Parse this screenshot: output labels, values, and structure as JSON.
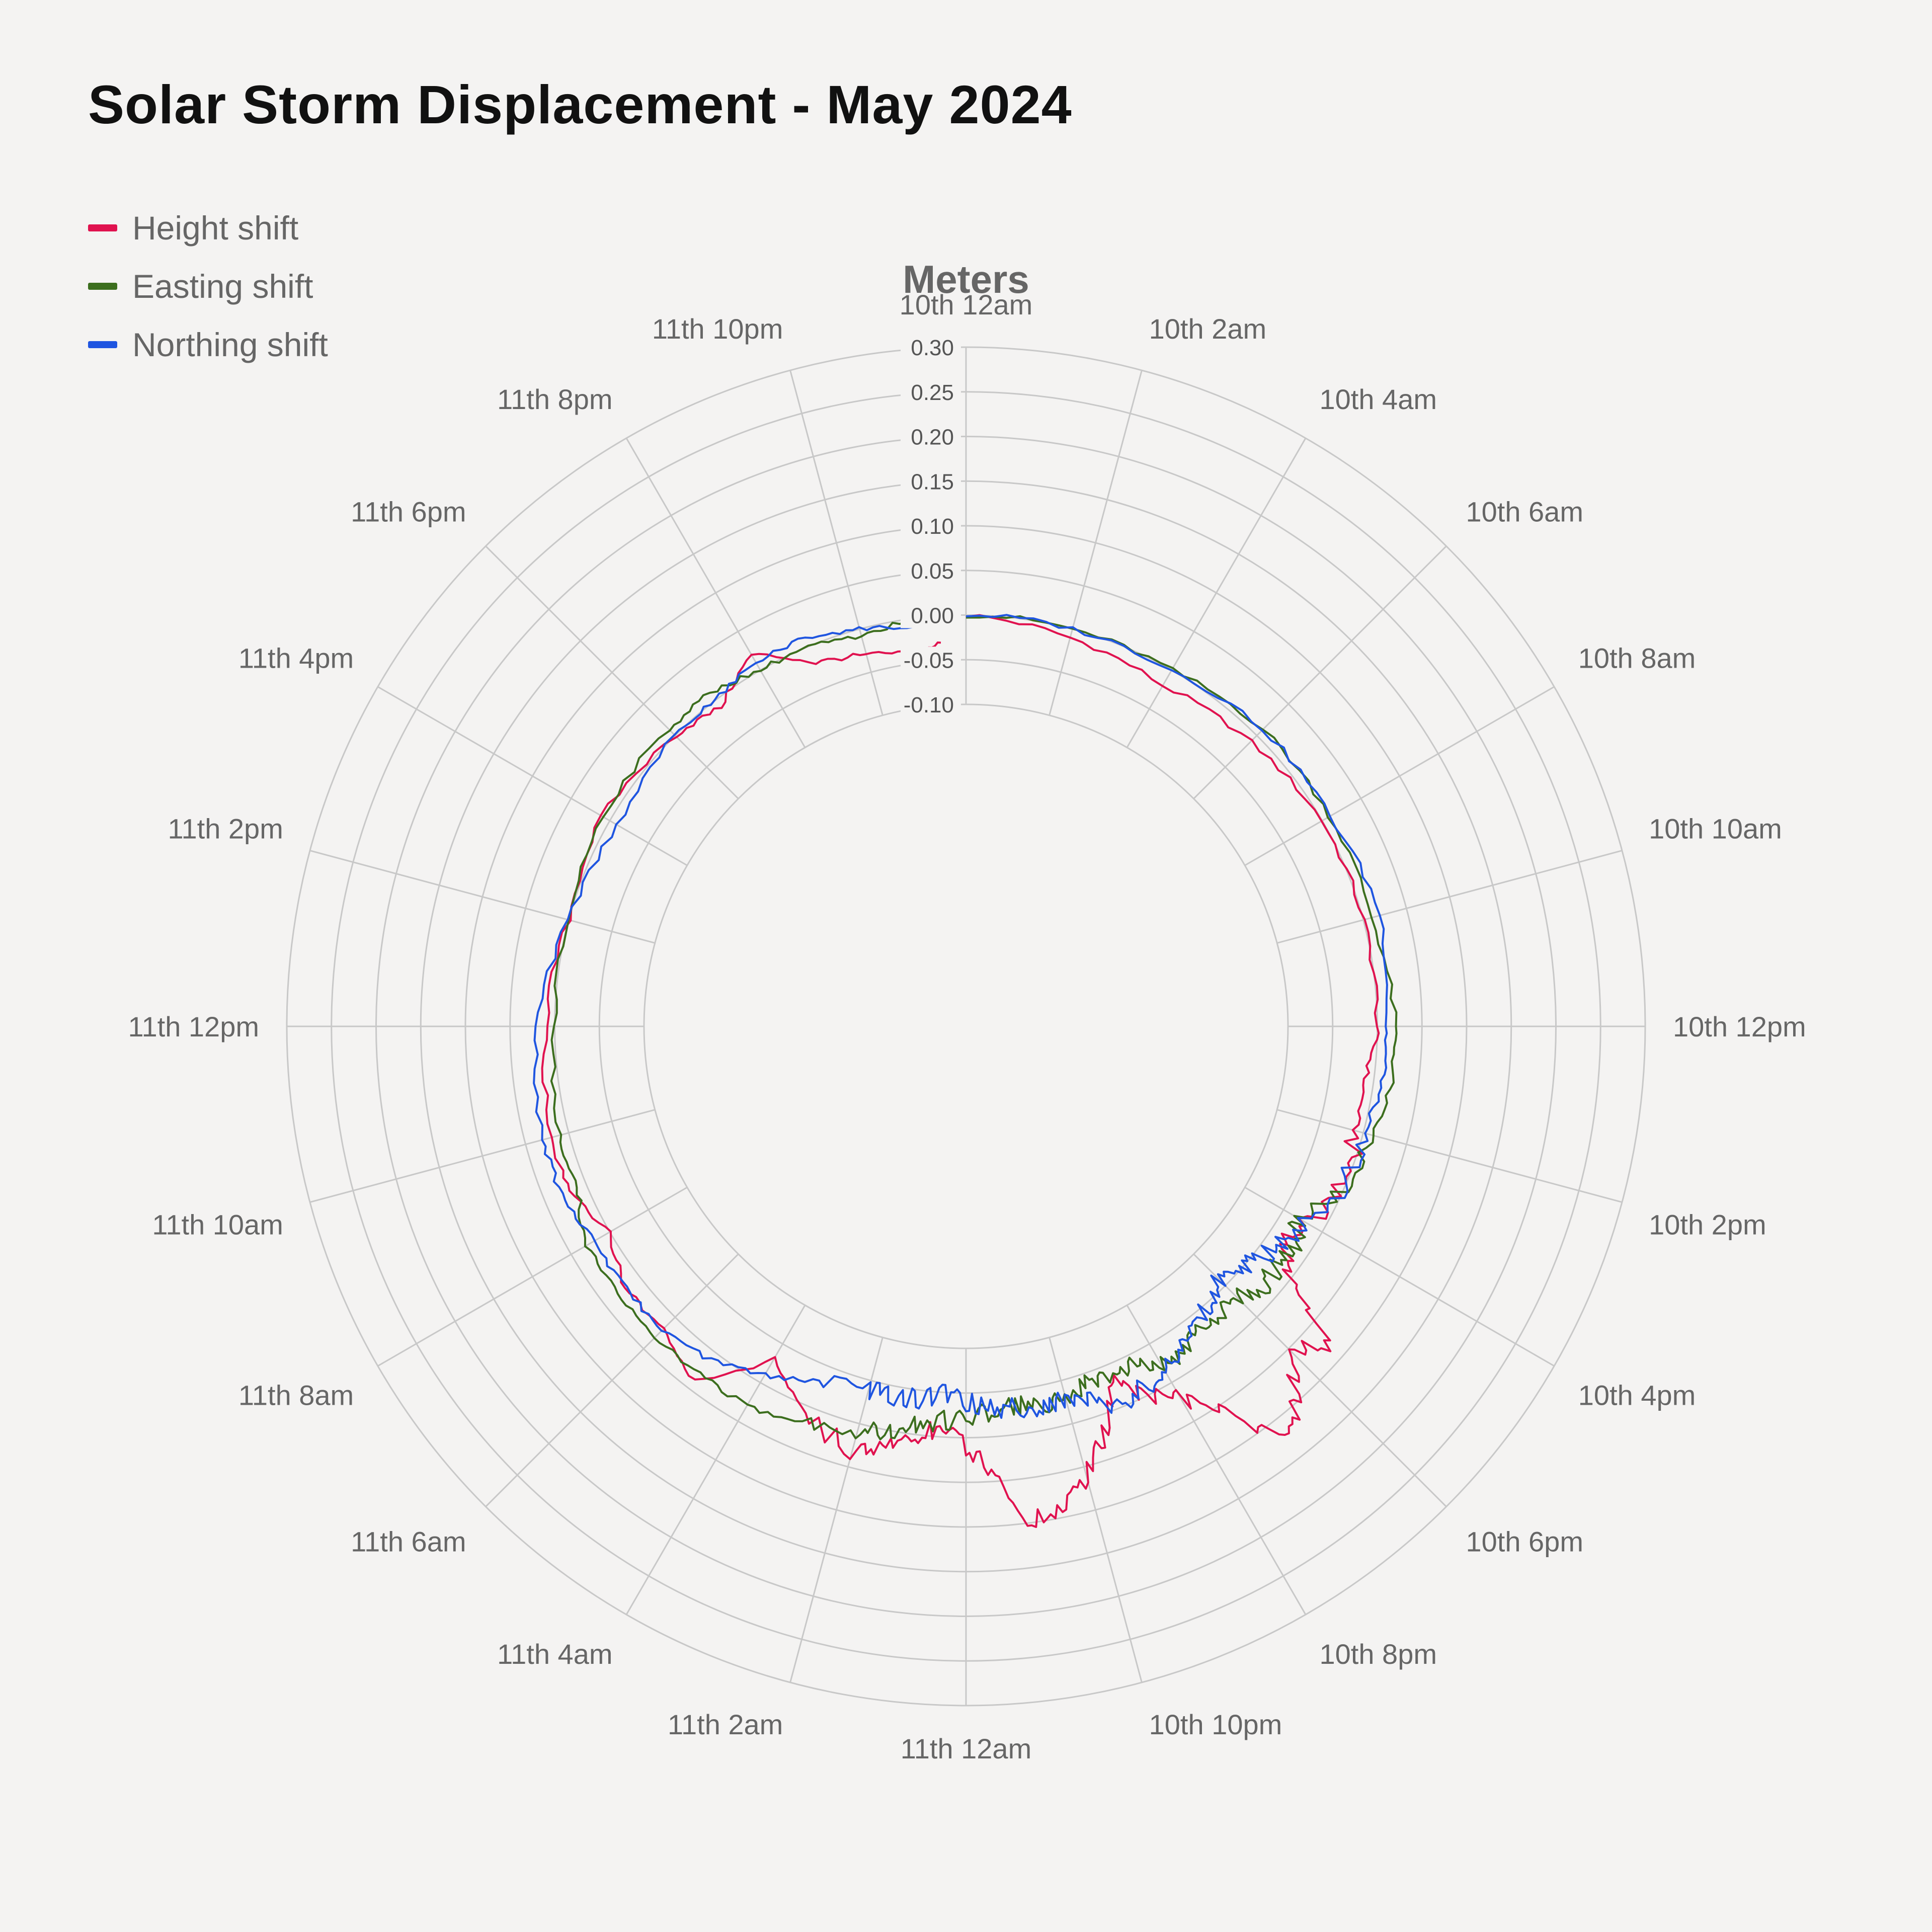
{
  "chart_data": {
    "type": "polar-line",
    "title": "Solar Storm Displacement - May 2024",
    "radial_label": "Meters",
    "radial_range": [
      -0.1,
      0.3
    ],
    "radial_ticks": [
      "0.30",
      "0.25",
      "0.20",
      "0.15",
      "0.10",
      "0.05",
      "0.00",
      "-0.05",
      "-0.10"
    ],
    "angular_ticks": [
      "10th 12am",
      "10th 2am",
      "10th 4am",
      "10th 6am",
      "10th 8am",
      "10th 10am",
      "10th 12pm",
      "10th 2pm",
      "10th 4pm",
      "10th 6pm",
      "10th 8pm",
      "10th 10pm",
      "11th 12am",
      "11th 2am",
      "11th 4am",
      "11th 6am",
      "11th 8am",
      "11th 10am",
      "11th 12pm",
      "11th 2pm",
      "11th 4pm",
      "11th 6pm",
      "11th 8pm",
      "11th 10pm"
    ],
    "hours": [
      0,
      2,
      4,
      6,
      8,
      10,
      12,
      13,
      14,
      15,
      16,
      16.5,
      17,
      17.5,
      18,
      18.5,
      19,
      19.5,
      20,
      20.5,
      21,
      21.5,
      22,
      22.5,
      23,
      23.5,
      24,
      24.5,
      25,
      25.5,
      26,
      27,
      28,
      29,
      30,
      31,
      32,
      33,
      34,
      36,
      38,
      40,
      42,
      43,
      44,
      45,
      46,
      47,
      47.5
    ],
    "series": [
      {
        "name": "Height shift",
        "color": "#e0124f",
        "values": [
          0.0,
          -0.01,
          -0.02,
          -0.01,
          0.0,
          0.0,
          0.0,
          -0.01,
          -0.01,
          0.0,
          -0.02,
          -0.03,
          -0.01,
          0.08,
          0.05,
          0.1,
          0.12,
          0.06,
          0.02,
          0.0,
          -0.03,
          0.02,
          0.06,
          0.09,
          0.1,
          0.04,
          0.01,
          -0.01,
          0.0,
          0.02,
          0.03,
          0.01,
          -0.03,
          0.04,
          0.02,
          0.02,
          0.0,
          0.02,
          0.02,
          0.01,
          0.0,
          0.01,
          0.0,
          -0.01,
          0.02,
          -0.02,
          -0.03,
          -0.04,
          -0.03
        ]
      },
      {
        "name": "Easting shift",
        "color": "#3c6e1e",
        "values": [
          0.0,
          0.0,
          0.0,
          0.01,
          0.01,
          0.01,
          0.02,
          0.02,
          0.01,
          0.0,
          -0.03,
          -0.02,
          -0.02,
          -0.02,
          -0.03,
          -0.03,
          -0.03,
          -0.02,
          -0.02,
          -0.04,
          -0.04,
          -0.04,
          -0.03,
          -0.03,
          -0.03,
          -0.03,
          -0.02,
          -0.02,
          -0.01,
          0.0,
          0.01,
          0.02,
          0.03,
          0.03,
          0.03,
          0.03,
          0.03,
          0.01,
          0.01,
          0.0,
          0.0,
          0.01,
          0.01,
          0.01,
          0.0,
          0.0,
          -0.01,
          0.0,
          0.01
        ]
      },
      {
        "name": "Northing shift",
        "color": "#1f55e0",
        "values": [
          0.0,
          0.0,
          0.0,
          0.01,
          0.01,
          0.02,
          0.01,
          0.01,
          0.0,
          0.0,
          -0.02,
          -0.03,
          -0.04,
          -0.05,
          -0.06,
          -0.04,
          -0.05,
          -0.03,
          -0.02,
          -0.01,
          0.0,
          -0.02,
          -0.03,
          -0.02,
          -0.03,
          -0.03,
          -0.04,
          -0.05,
          -0.04,
          -0.04,
          -0.04,
          -0.03,
          -0.01,
          0.01,
          0.02,
          0.02,
          0.02,
          0.03,
          0.03,
          0.02,
          0.0,
          -0.01,
          0.0,
          0.0,
          0.01,
          0.01,
          0.0,
          -0.01,
          -0.01
        ]
      }
    ]
  }
}
